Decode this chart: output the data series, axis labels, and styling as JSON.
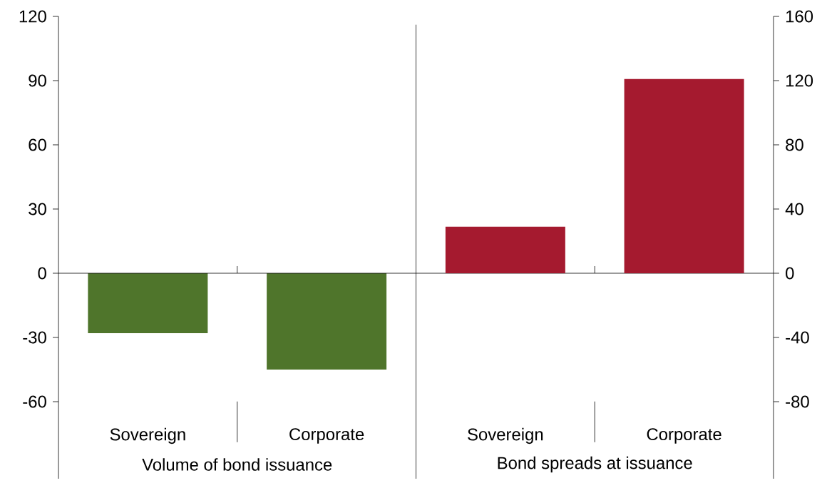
{
  "chart_data": {
    "type": "bar",
    "categories": [
      "Sovereign",
      "Corporate",
      "Sovereign",
      "Corporate"
    ],
    "series": [
      {
        "color": "#4f752b",
        "values": [
          -28,
          -45,
          null,
          null
        ]
      },
      {
        "color": "#a51a2f",
        "values": [
          null,
          null,
          29,
          121
        ],
        "axis": "y2"
      }
    ],
    "annotations": [
      "Volume of bond issuance",
      "Bond spreads at issuance"
    ],
    "ylim": [
      -96,
      120
    ],
    "yticks": [
      -60,
      -30,
      0,
      30,
      60,
      90,
      120
    ],
    "y2lim": [
      -128,
      160
    ],
    "y2ticks": [
      -80,
      -40,
      0,
      40,
      80,
      120,
      160
    ]
  }
}
